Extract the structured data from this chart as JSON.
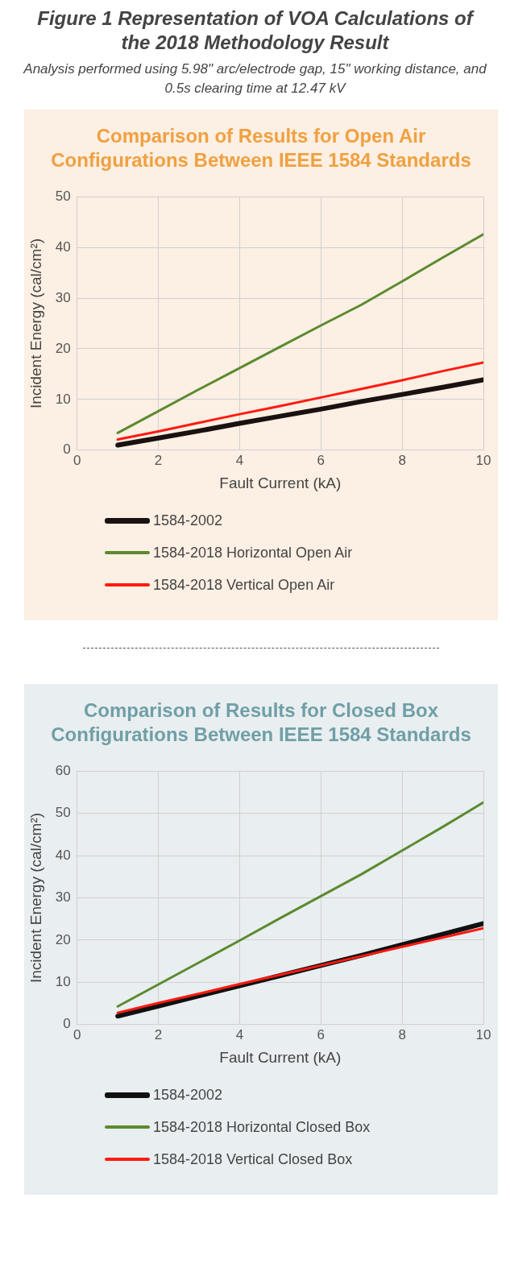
{
  "chart_data": [
    {
      "type": "line",
      "title": "Comparison of Results for Open Air Configurations Between IEEE 1584 Standards",
      "annotations": [
        "Figure 1 Representation of VOA Calculations of the 2018 Methodology Result",
        "Analysis performed using 5.98\" arc/electrode gap, 15\" working distance, and 0.5s clearing time at 12.47 kV"
      ],
      "xlabel": "Fault Current (kA)",
      "ylabel": "Incident Energy (cal/cm²)",
      "x": [
        1,
        2,
        3,
        4,
        5,
        6,
        7,
        8,
        9,
        10
      ],
      "xlim": [
        0,
        10
      ],
      "xticks": [
        0,
        2,
        4,
        6,
        8,
        10
      ],
      "ylim": [
        0,
        50
      ],
      "yticks": [
        0,
        10,
        20,
        30,
        40,
        50
      ],
      "grid": true,
      "legend": "bottom",
      "marker": "none",
      "series": [
        {
          "name": "1584-2002",
          "color": "#1a1210",
          "values": [
            1.0,
            2.4,
            3.8,
            5.3,
            6.7,
            8.1,
            9.6,
            11,
            12.4,
            13.9
          ]
        },
        {
          "name": "1584-2018 Horizontal Open Air",
          "color": "#5b8a2e",
          "values": [
            3.4,
            7.7,
            12,
            16.2,
            20.4,
            24.6,
            28.7,
            33.3,
            38,
            42.6
          ]
        },
        {
          "name": "1584-2018 Vertical Open Air",
          "color": "#ff1a10",
          "values": [
            2.1,
            3.7,
            5.4,
            7.1,
            8.7,
            10.4,
            12.1,
            13.8,
            15.6,
            17.3
          ]
        }
      ]
    },
    {
      "type": "line",
      "title": "Comparison of Results for Closed Box Configurations Between IEEE 1584 Standards",
      "xlabel": "Fault Current (kA)",
      "ylabel": "Incident Energy (cal/cm²)",
      "x": [
        1,
        2,
        3,
        4,
        5,
        6,
        7,
        8,
        9,
        10
      ],
      "xlim": [
        0,
        10
      ],
      "xticks": [
        0,
        2,
        4,
        6,
        8,
        10
      ],
      "ylim": [
        0,
        60
      ],
      "yticks": [
        0,
        10,
        20,
        30,
        40,
        50,
        60
      ],
      "grid": true,
      "legend": "bottom",
      "marker": "none",
      "series": [
        {
          "name": "1584-2002",
          "color": "#111111",
          "values": [
            2,
            4.4,
            6.8,
            9.2,
            11.6,
            14,
            16.4,
            18.9,
            21.4,
            23.9
          ]
        },
        {
          "name": "1584-2018 Horizontal Closed Box",
          "color": "#5b8a2e",
          "values": [
            4.3,
            9.5,
            14.7,
            19.9,
            25.2,
            30.4,
            35.6,
            41.2,
            46.8,
            52.6
          ]
        },
        {
          "name": "1584-2018 Vertical Closed Box",
          "color": "#ff1a10",
          "values": [
            2.8,
            5.1,
            7.3,
            9.6,
            11.8,
            14,
            16.2,
            18.4,
            20.6,
            22.8
          ]
        }
      ]
    }
  ]
}
